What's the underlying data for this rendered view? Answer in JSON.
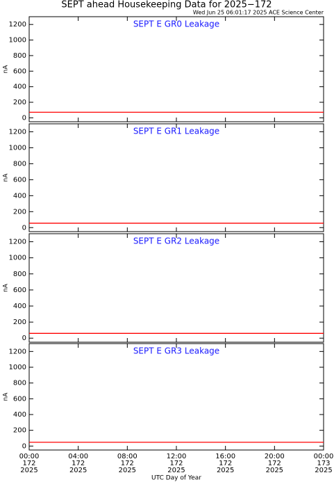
{
  "title": "SEPT ahead Housekeeping Data for 2025−172",
  "subtitle": "Wed Jun 25 06:01:17 2025 ACE Science Center",
  "chart_data": [
    {
      "type": "line",
      "title": "SEPT E GR0 Leakage",
      "title_color": "#1a1aff",
      "ylabel": "nA",
      "ylim": [
        -50,
        1300
      ],
      "yticks": [
        0,
        200,
        400,
        600,
        800,
        1000,
        1200
      ],
      "x": [
        0,
        24
      ],
      "series": [
        {
          "color": "#ff0000",
          "values": [
            72,
            72
          ]
        }
      ]
    },
    {
      "type": "line",
      "title": "SEPT E GR1 Leakage",
      "title_color": "#1a1aff",
      "ylabel": "nA",
      "ylim": [
        -50,
        1300
      ],
      "yticks": [
        0,
        200,
        400,
        600,
        800,
        1000,
        1200
      ],
      "x": [
        0,
        24
      ],
      "series": [
        {
          "color": "#ff0000",
          "values": [
            55,
            55
          ]
        }
      ]
    },
    {
      "type": "line",
      "title": "SEPT E GR2 Leakage",
      "title_color": "#1a1aff",
      "ylabel": "nA",
      "ylim": [
        -50,
        1300
      ],
      "yticks": [
        0,
        200,
        400,
        600,
        800,
        1000,
        1200
      ],
      "x": [
        0,
        24
      ],
      "series": [
        {
          "color": "#ff0000",
          "values": [
            60,
            60
          ]
        }
      ]
    },
    {
      "type": "line",
      "title": "SEPT E GR3 Leakage",
      "title_color": "#1a1aff",
      "ylabel": "nA",
      "ylim": [
        -50,
        1300
      ],
      "yticks": [
        0,
        200,
        400,
        600,
        800,
        1000,
        1200
      ],
      "x": [
        0,
        24
      ],
      "series": [
        {
          "color": "#ff0000",
          "values": [
            48,
            48
          ]
        }
      ],
      "xlabel": "UTC Day of Year",
      "xlim": [
        0,
        24
      ],
      "xticks": [
        {
          "value": 0,
          "label": "00:00",
          "day": "172",
          "year": "2025"
        },
        {
          "value": 4,
          "label": "04:00",
          "day": "172",
          "year": "2025"
        },
        {
          "value": 8,
          "label": "08:00",
          "day": "172",
          "year": "2025"
        },
        {
          "value": 12,
          "label": "12:00",
          "day": "172",
          "year": "2025"
        },
        {
          "value": 16,
          "label": "16:00",
          "day": "172",
          "year": "2025"
        },
        {
          "value": 20,
          "label": "20:00",
          "day": "172",
          "year": "2025"
        },
        {
          "value": 24,
          "label": "00:00",
          "day": "173",
          "year": "2025"
        }
      ]
    }
  ]
}
